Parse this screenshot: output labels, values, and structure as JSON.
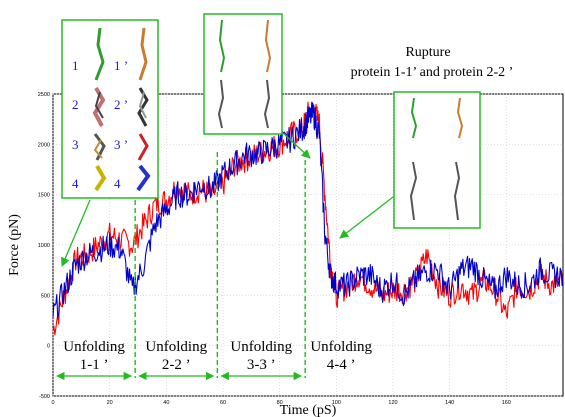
{
  "chart_data": {
    "type": "line",
    "xlabel": "Time (pS)",
    "ylabel": "Force (pN)",
    "xlim": [
      0,
      180
    ],
    "ylim": [
      -500,
      2500
    ],
    "x_ticks": [
      0,
      20,
      40,
      60,
      80,
      100,
      120,
      140,
      160
    ],
    "y_ticks": [
      -500,
      0,
      500,
      1000,
      1500,
      2000,
      2500
    ],
    "grid": true,
    "series": [
      {
        "color": "#ff0000",
        "x": [
          0,
          4,
          8,
          12,
          16,
          20,
          24,
          28,
          32,
          36,
          40,
          44,
          48,
          52,
          56,
          60,
          64,
          68,
          72,
          76,
          80,
          84,
          88,
          90,
          92,
          94,
          96,
          98,
          100,
          104,
          108,
          112,
          116,
          120,
          124,
          128,
          132,
          136,
          140,
          144,
          148,
          152,
          156,
          160,
          164,
          168,
          172,
          176,
          180
        ],
        "y": [
          150,
          500,
          850,
          900,
          1000,
          1100,
          1050,
          1000,
          1200,
          1400,
          1450,
          1600,
          1500,
          1550,
          1500,
          1600,
          1800,
          1850,
          1900,
          1950,
          2000,
          2100,
          2150,
          2300,
          2350,
          2200,
          1500,
          800,
          500,
          600,
          700,
          600,
          500,
          550,
          550,
          650,
          900,
          600,
          500,
          600,
          500,
          650,
          550,
          300,
          600,
          550,
          700,
          600,
          650
        ]
      },
      {
        "color": "#0000cc",
        "x": [
          0,
          4,
          8,
          12,
          16,
          20,
          24,
          28,
          32,
          36,
          40,
          44,
          48,
          52,
          56,
          60,
          64,
          68,
          72,
          76,
          80,
          84,
          88,
          90,
          92,
          94,
          96,
          98,
          100,
          104,
          108,
          112,
          116,
          120,
          124,
          128,
          132,
          136,
          140,
          144,
          148,
          152,
          156,
          160,
          164,
          168,
          172,
          176,
          180
        ],
        "y": [
          300,
          550,
          800,
          900,
          950,
          1000,
          950,
          550,
          800,
          1200,
          1350,
          1500,
          1500,
          1600,
          1550,
          1700,
          1800,
          1900,
          1900,
          1950,
          2000,
          2050,
          2150,
          2250,
          2300,
          2100,
          1100,
          700,
          600,
          600,
          700,
          700,
          550,
          650,
          500,
          650,
          750,
          750,
          550,
          750,
          800,
          650,
          550,
          700,
          600,
          600,
          750,
          700,
          700
        ]
      }
    ],
    "stage_boundaries": [
      29,
      58,
      89
    ],
    "stages": [
      {
        "line1": "Unfolding",
        "line2": "1-1 ’"
      },
      {
        "line1": "Unfolding",
        "line2": "2-2 ’"
      },
      {
        "line1": "Unfolding",
        "line2": "3-3 ’"
      },
      {
        "line1": "Unfolding",
        "line2": "4-4 ’"
      }
    ],
    "annotations": {
      "rupture_title": "Rupture",
      "rupture_detail": "protein 1-1’ and protein 2-2 ’"
    },
    "inset_labels_left": [
      "1",
      "2",
      "3",
      "4"
    ],
    "inset_labels_right": [
      "1 ’",
      "2 ’",
      "3 ’",
      "4"
    ]
  },
  "colors": {
    "red_series": "#ff0000",
    "blue_series": "#0000cc",
    "annotation_green": "#22bb22",
    "inset_label_blue": "#1a1acc",
    "grid": "#cfcfcf"
  }
}
